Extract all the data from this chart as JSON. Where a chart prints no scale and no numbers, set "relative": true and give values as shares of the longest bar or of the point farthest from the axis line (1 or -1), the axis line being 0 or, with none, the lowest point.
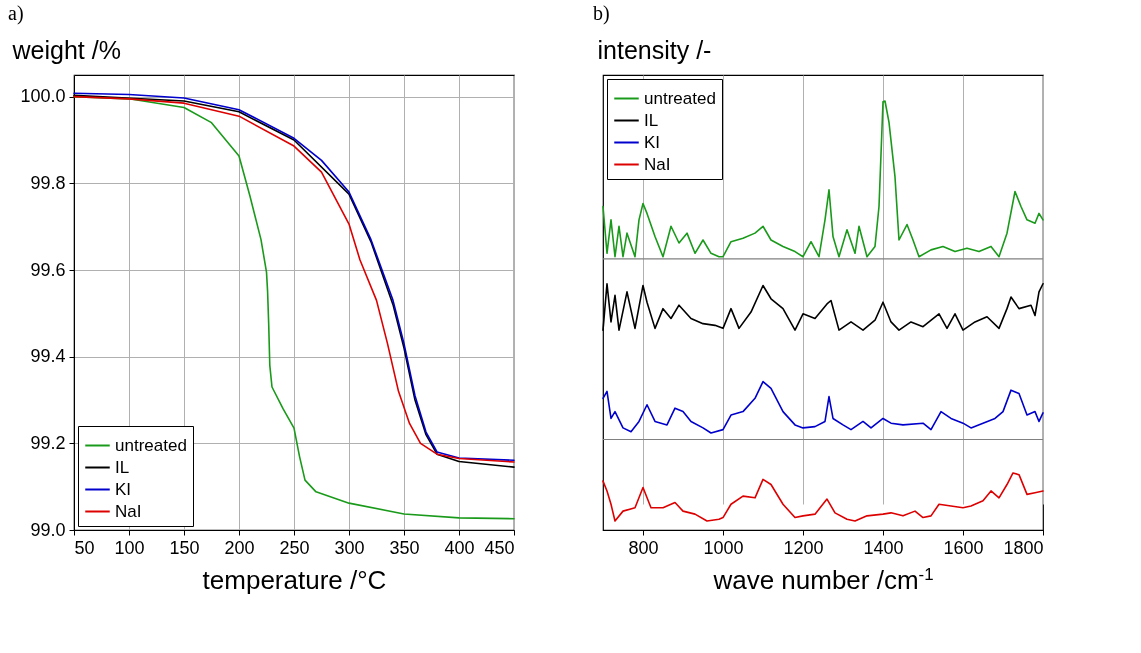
{
  "chart_data": [
    {
      "type": "line",
      "title": "a)",
      "ylabel": "weight /%",
      "xlabel": "temperature /°C",
      "xlim": [
        50,
        450
      ],
      "xticks": [
        50,
        100,
        150,
        200,
        250,
        300,
        350,
        400,
        450
      ],
      "ylim": [
        99.0,
        100.05
      ],
      "yticks": [
        {
          "value": 99.0,
          "label": "99.0"
        },
        99.2,
        99.4,
        99.6,
        99.8,
        {
          "value": 100.0,
          "label": "100.0"
        }
      ],
      "grid": true,
      "legend": "bottom left",
      "series": [
        {
          "name": "untreated",
          "color": "#1a9a1a",
          "x": [
            50,
            100,
            150,
            175,
            200,
            210,
            220,
            225,
            226,
            227,
            228,
            230,
            240,
            250,
            255,
            260,
            270,
            300,
            350,
            400,
            450
          ],
          "values": [
            100.0,
            99.995,
            99.975,
            99.94,
            99.863,
            99.77,
            99.67,
            99.595,
            99.55,
            99.475,
            99.38,
            99.33,
            99.28,
            99.235,
            99.17,
            99.115,
            99.088,
            99.062,
            99.037,
            99.028,
            99.026
          ]
        },
        {
          "name": "IL",
          "color": "#000000",
          "x": [
            50,
            150,
            200,
            250,
            300,
            320,
            340,
            350,
            360,
            370,
            380,
            400,
            450
          ],
          "values": [
            100.003,
            99.99,
            99.965,
            99.9,
            99.775,
            99.665,
            99.52,
            99.42,
            99.3,
            99.22,
            99.175,
            99.158,
            99.145
          ]
        },
        {
          "name": "KI",
          "color": "#0000cc",
          "x": [
            50,
            100,
            150,
            200,
            250,
            275,
            300,
            320,
            340,
            350,
            360,
            370,
            380,
            400,
            450
          ],
          "values": [
            100.008,
            100.005,
            99.997,
            99.97,
            99.904,
            99.853,
            99.78,
            99.67,
            99.53,
            99.43,
            99.31,
            99.226,
            99.18,
            99.166,
            99.161
          ]
        },
        {
          "name": "NaI",
          "color": "#dd0000",
          "x": [
            50,
            100,
            150,
            200,
            250,
            275,
            300,
            310,
            325,
            335,
            345,
            355,
            365,
            380,
            400,
            450
          ],
          "values": [
            100.0,
            99.995,
            99.985,
            99.955,
            99.886,
            99.826,
            99.706,
            99.623,
            99.53,
            99.43,
            99.32,
            99.246,
            99.2,
            99.175,
            99.165,
            99.157
          ]
        }
      ]
    },
    {
      "type": "line",
      "title": "b)",
      "ylabel": "intensity /-",
      "xlabel": "wave number /cm$^{-1}$",
      "xlim": [
        700,
        1800
      ],
      "xticks": [
        800,
        1000,
        1200,
        1400,
        1600,
        1800
      ],
      "relative": true,
      "grid": "x",
      "legend": "top left",
      "ref_lines": [
        {
          "axis": "y",
          "value": 0.632,
          "color": "#808080"
        },
        {
          "axis": "y",
          "value": 0.211,
          "color": "#808080"
        }
      ],
      "series": [
        {
          "name": "untreated",
          "color": "#1a9a1a",
          "x": [
            700,
            710,
            720,
            730,
            740,
            750,
            760,
            780,
            790,
            800,
            810,
            830,
            850,
            870,
            890,
            910,
            930,
            950,
            970,
            990,
            1000,
            1020,
            1050,
            1080,
            1100,
            1120,
            1150,
            1180,
            1200,
            1220,
            1240,
            1255,
            1265,
            1275,
            1290,
            1310,
            1330,
            1340,
            1360,
            1380,
            1390,
            1400,
            1405,
            1415,
            1430,
            1440,
            1460,
            1475,
            1490,
            1520,
            1550,
            1580,
            1610,
            1640,
            1670,
            1690,
            1710,
            1730,
            1745,
            1760,
            1780,
            1790,
            1800
          ],
          "values": [
            0.754,
            0.645,
            0.723,
            0.637,
            0.708,
            0.637,
            0.692,
            0.637,
            0.723,
            0.761,
            0.738,
            0.684,
            0.637,
            0.708,
            0.669,
            0.692,
            0.645,
            0.676,
            0.645,
            0.637,
            0.637,
            0.672,
            0.68,
            0.692,
            0.708,
            0.676,
            0.661,
            0.649,
            0.637,
            0.672,
            0.637,
            0.723,
            0.793,
            0.684,
            0.637,
            0.7,
            0.645,
            0.708,
            0.637,
            0.661,
            0.754,
            0.998,
            1.0,
            0.95,
            0.823,
            0.676,
            0.712,
            0.676,
            0.637,
            0.653,
            0.661,
            0.649,
            0.657,
            0.649,
            0.661,
            0.637,
            0.692,
            0.789,
            0.754,
            0.723,
            0.715,
            0.738,
            0.723
          ]
        },
        {
          "name": "IL",
          "color": "#000000",
          "x": [
            700,
            710,
            720,
            730,
            740,
            760,
            780,
            800,
            810,
            830,
            850,
            870,
            890,
            920,
            950,
            980,
            1000,
            1020,
            1040,
            1070,
            1100,
            1120,
            1150,
            1180,
            1200,
            1230,
            1260,
            1270,
            1290,
            1320,
            1350,
            1380,
            1400,
            1420,
            1440,
            1470,
            1500,
            1540,
            1560,
            1580,
            1600,
            1630,
            1660,
            1690,
            1710,
            1720,
            1740,
            1770,
            1780,
            1790,
            1800
          ],
          "values": [
            0.466,
            0.574,
            0.485,
            0.547,
            0.466,
            0.555,
            0.47,
            0.57,
            0.531,
            0.47,
            0.516,
            0.493,
            0.524,
            0.493,
            0.481,
            0.477,
            0.47,
            0.516,
            0.47,
            0.508,
            0.57,
            0.539,
            0.516,
            0.466,
            0.504,
            0.493,
            0.527,
            0.535,
            0.466,
            0.485,
            0.466,
            0.489,
            0.531,
            0.485,
            0.466,
            0.485,
            0.474,
            0.504,
            0.47,
            0.504,
            0.466,
            0.485,
            0.497,
            0.47,
            0.516,
            0.543,
            0.516,
            0.524,
            0.5,
            0.555,
            0.574
          ]
        },
        {
          "name": "KI",
          "color": "#0000cc",
          "x": [
            700,
            710,
            720,
            730,
            750,
            770,
            790,
            810,
            830,
            860,
            880,
            900,
            920,
            950,
            970,
            1000,
            1020,
            1050,
            1080,
            1100,
            1120,
            1150,
            1180,
            1200,
            1230,
            1255,
            1265,
            1275,
            1300,
            1320,
            1350,
            1370,
            1400,
            1420,
            1450,
            1500,
            1520,
            1545,
            1570,
            1600,
            1620,
            1650,
            1680,
            1700,
            1720,
            1740,
            1760,
            1780,
            1790,
            1800
          ],
          "values": [
            0.307,
            0.323,
            0.26,
            0.276,
            0.238,
            0.229,
            0.253,
            0.292,
            0.253,
            0.245,
            0.284,
            0.276,
            0.253,
            0.238,
            0.226,
            0.234,
            0.268,
            0.276,
            0.307,
            0.346,
            0.33,
            0.276,
            0.245,
            0.238,
            0.241,
            0.253,
            0.311,
            0.26,
            0.245,
            0.234,
            0.253,
            0.238,
            0.26,
            0.249,
            0.245,
            0.249,
            0.234,
            0.276,
            0.26,
            0.249,
            0.238,
            0.249,
            0.26,
            0.276,
            0.326,
            0.318,
            0.268,
            0.276,
            0.253,
            0.273
          ]
        },
        {
          "name": "NaI",
          "color": "#dd0000",
          "x": [
            700,
            710,
            720,
            730,
            750,
            780,
            800,
            820,
            850,
            880,
            900,
            930,
            960,
            990,
            1000,
            1020,
            1050,
            1080,
            1100,
            1120,
            1150,
            1180,
            1200,
            1230,
            1260,
            1280,
            1310,
            1330,
            1360,
            1400,
            1420,
            1450,
            1480,
            1500,
            1520,
            1540,
            1570,
            1600,
            1620,
            1650,
            1670,
            1690,
            1710,
            1725,
            1740,
            1760,
            1780,
            1800
          ],
          "values": [
            0.114,
            0.091,
            0.06,
            0.021,
            0.044,
            0.052,
            0.099,
            0.052,
            0.052,
            0.064,
            0.044,
            0.037,
            0.021,
            0.025,
            0.029,
            0.06,
            0.079,
            0.075,
            0.118,
            0.106,
            0.06,
            0.029,
            0.033,
            0.037,
            0.072,
            0.04,
            0.025,
            0.021,
            0.033,
            0.037,
            0.04,
            0.033,
            0.044,
            0.029,
            0.033,
            0.06,
            0.056,
            0.052,
            0.056,
            0.068,
            0.091,
            0.075,
            0.106,
            0.133,
            0.129,
            0.083,
            0.087,
            0.091
          ]
        }
      ]
    }
  ]
}
